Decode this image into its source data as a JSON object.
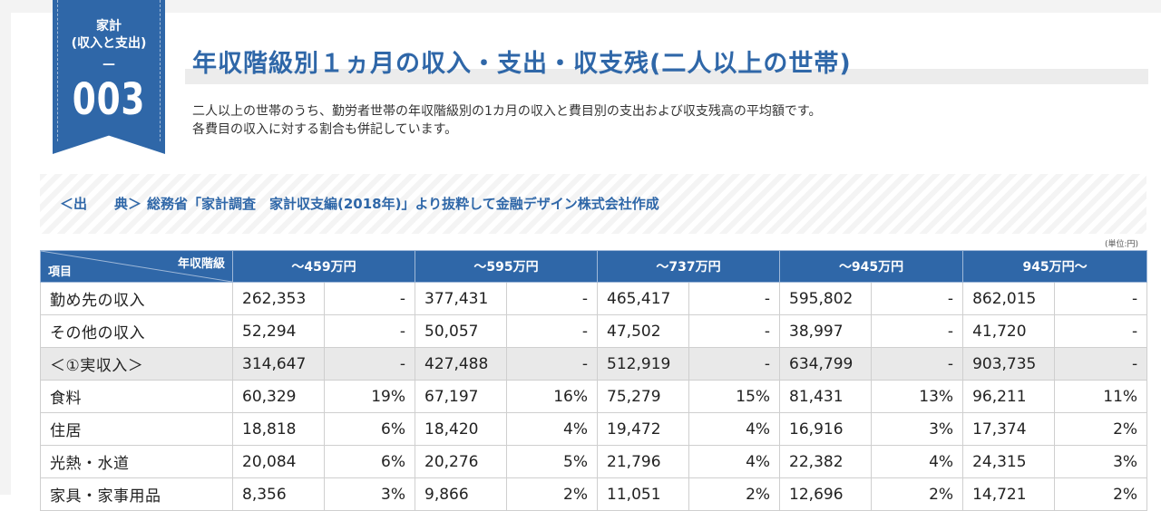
{
  "badge": {
    "category": "家計\n(収入と支出)",
    "dash": "—",
    "number": "003"
  },
  "title": "年収階級別１ヵ月の収入・支出・収支残(二人以上の世帯)",
  "description": [
    "二人以上の世帯のうち、勤労者世帯の年収階級別の1カ月の収入と費目別の支出および収支残高の平均額です。",
    "各費目の収入に対する割合も併記しています。"
  ],
  "source": {
    "label": "＜出　　典＞",
    "text": "総務省「家計調査　家計収支編(2018年)」より抜粋して金融デザイン株式会社作成"
  },
  "unit": "(単位:円)",
  "table": {
    "corner_top": "年収階級",
    "corner_bottom": "項目",
    "columns": [
      "～459万円",
      "～595万円",
      "～737万円",
      "～945万円",
      "945万円～"
    ],
    "rows": [
      {
        "label": "勤め先の収入",
        "cells": [
          "262,353",
          "-",
          "377,431",
          "-",
          "465,417",
          "-",
          "595,802",
          "-",
          "862,015",
          "-"
        ]
      },
      {
        "label": "その他の収入",
        "cells": [
          "52,294",
          "-",
          "50,057",
          "-",
          "47,502",
          "-",
          "38,997",
          "-",
          "41,720",
          "-"
        ]
      },
      {
        "label": "＜①実収入＞",
        "cells": [
          "314,647",
          "-",
          "427,488",
          "-",
          "512,919",
          "-",
          "634,799",
          "-",
          "903,735",
          "-"
        ]
      },
      {
        "label": "食料",
        "cells": [
          "60,329",
          "19%",
          "67,197",
          "16%",
          "75,279",
          "15%",
          "81,431",
          "13%",
          "96,211",
          "11%"
        ]
      },
      {
        "label": "住居",
        "cells": [
          "18,818",
          "6%",
          "18,420",
          "4%",
          "19,472",
          "4%",
          "16,916",
          "3%",
          "17,374",
          "2%"
        ]
      },
      {
        "label": "光熱・水道",
        "cells": [
          "20,084",
          "6%",
          "20,276",
          "5%",
          "21,796",
          "4%",
          "22,382",
          "4%",
          "24,315",
          "3%"
        ]
      },
      {
        "label": "家具・家事用品",
        "cells": [
          "8,356",
          "3%",
          "9,866",
          "2%",
          "11,051",
          "2%",
          "12,696",
          "2%",
          "14,721",
          "2%"
        ]
      }
    ]
  },
  "colors": {
    "accent": "#2f67a8",
    "subtotal_row": "#e9e9e9"
  }
}
